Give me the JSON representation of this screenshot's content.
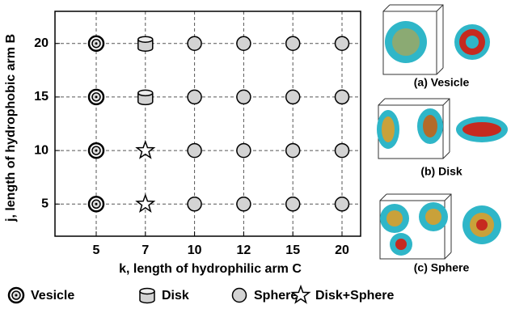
{
  "chart_data": {
    "type": "scatter",
    "x_label": "k,  length of hydrophilic arm C",
    "y_label": "j, length of hydrophobic arm B",
    "xticks": [
      5,
      7,
      10,
      12,
      15,
      20
    ],
    "ylim": [
      2,
      23
    ],
    "yticks": [
      5,
      10,
      15,
      20
    ],
    "grid": true,
    "series": [
      {
        "name": "Vesicle",
        "marker": "vesicle",
        "x": [
          5,
          5,
          5,
          5
        ],
        "y": [
          20,
          15,
          10,
          5
        ]
      },
      {
        "name": "Disk",
        "marker": "disk",
        "x": [
          7,
          7
        ],
        "y": [
          20,
          15
        ]
      },
      {
        "name": "Sphere",
        "marker": "sphere",
        "color": "#d3d3d3",
        "x": [
          10,
          12,
          15,
          20,
          10,
          12,
          15,
          20,
          10,
          12,
          15,
          20,
          10,
          12,
          15,
          20
        ],
        "y": [
          20,
          20,
          20,
          20,
          15,
          15,
          15,
          15,
          10,
          10,
          10,
          10,
          5,
          5,
          5,
          5
        ]
      },
      {
        "name": "Disk+Sphere",
        "marker": "star",
        "x": [
          7,
          7
        ],
        "y": [
          10,
          5
        ]
      }
    ]
  },
  "panels": [
    "(a) Vesicle",
    "(b)  Disk",
    "(c) Sphere"
  ]
}
